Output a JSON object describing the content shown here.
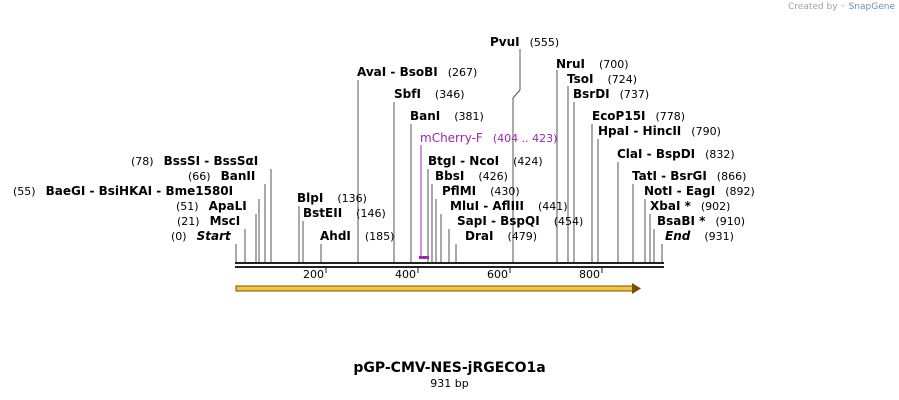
{
  "brand": {
    "prefix": "Created by",
    "name": "SnapGene"
  },
  "plasmid": {
    "name": "pGP-CMV-NES-jRGECO1a",
    "length_label": "931 bp",
    "length": 931
  },
  "ruler": {
    "ticks": [
      "200",
      "400",
      "600",
      "800"
    ]
  },
  "colors": {
    "feature": "#9c27b0",
    "arrow_fill": "#f5c542",
    "arrow_edge": "#7a4f00",
    "line": "#555555"
  },
  "sites": [
    {
      "name": "PvuI",
      "pos": "(555)"
    },
    {
      "name": "NruI",
      "pos": "(700)"
    },
    {
      "name": "AvaI - BsoBI",
      "pos": "(267)"
    },
    {
      "name": "TsoI",
      "pos": "(724)"
    },
    {
      "name": "SbfI",
      "pos": "(346)"
    },
    {
      "name": "BsrDI",
      "pos": "(737)"
    },
    {
      "name": "BanI",
      "pos": "(381)"
    },
    {
      "name": "EcoP15I",
      "pos": "(778)"
    },
    {
      "name": "HpaI - HincII",
      "pos": "(790)"
    },
    {
      "name": "ClaI - BspDI",
      "pos": "(832)"
    },
    {
      "name": "BssSI - BssSαI",
      "pos": "(78)"
    },
    {
      "name": "BtgI - NcoI",
      "pos": "(424)"
    },
    {
      "name": "BanII",
      "pos": "(66)"
    },
    {
      "name": "BbsI",
      "pos": "(426)"
    },
    {
      "name": "TatI - BsrGI",
      "pos": "(866)"
    },
    {
      "name": "BaeGI - BsiHKAI - Bme1580I",
      "pos": "(55)"
    },
    {
      "name": "PflMI",
      "pos": "(430)"
    },
    {
      "name": "NotI - EagI",
      "pos": "(892)"
    },
    {
      "name": "BlpI",
      "pos": "(136)"
    },
    {
      "name": "ApaLI",
      "pos": "(51)"
    },
    {
      "name": "MluI - AflIII",
      "pos": "(441)"
    },
    {
      "name": "XbaI *",
      "pos": "(902)"
    },
    {
      "name": "BstEII",
      "pos": "(146)"
    },
    {
      "name": "MscI",
      "pos": "(21)"
    },
    {
      "name": "SapI - BspQI",
      "pos": "(454)"
    },
    {
      "name": "BsaBI *",
      "pos": "(910)"
    },
    {
      "name": "Start",
      "pos": "(0)"
    },
    {
      "name": "AhdI",
      "pos": "(185)"
    },
    {
      "name": "DraI",
      "pos": "(479)"
    },
    {
      "name": "End",
      "pos": "(931)"
    }
  ],
  "feature": {
    "name": "mCherry-F",
    "range": "(404 .. 423)"
  }
}
